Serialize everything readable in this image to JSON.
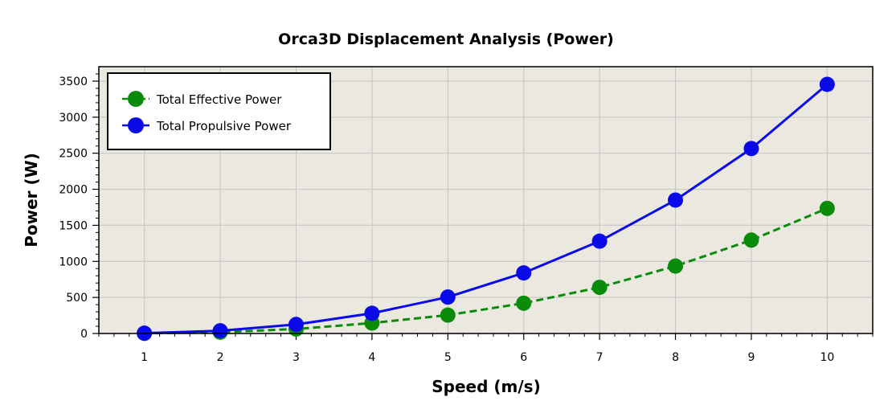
{
  "chart_data": {
    "type": "line",
    "title": "Orca3D Displacement Analysis (Power)",
    "xlabel": "Speed (m/s)",
    "ylabel": "Power (W)",
    "xlim": [
      0.4,
      10.6
    ],
    "ylim": [
      0,
      3700
    ],
    "x": [
      1,
      2,
      3,
      4,
      5,
      6,
      7,
      8,
      9,
      10
    ],
    "x_ticks": [
      1,
      2,
      3,
      4,
      5,
      6,
      7,
      8,
      9,
      10
    ],
    "y_ticks": [
      0,
      500,
      1000,
      1500,
      2000,
      2500,
      3000,
      3500
    ],
    "grid": true,
    "legend_position": "top-left",
    "series": [
      {
        "name": "Total Effective Power",
        "color": "#0a8c0a",
        "line_style": "dashed",
        "marker": "circle",
        "values": [
          2,
          18,
          62,
          145,
          255,
          420,
          640,
          935,
          1295,
          1735
        ]
      },
      {
        "name": "Total Propulsive Power",
        "color": "#0a0ae8",
        "line_style": "solid",
        "marker": "circle",
        "values": [
          4,
          38,
          125,
          280,
          505,
          840,
          1280,
          1850,
          2565,
          3455
        ]
      }
    ]
  },
  "colors": {
    "plot_background": "#ebe8df",
    "grid": "#c9c9c9",
    "frame": "#000000"
  }
}
